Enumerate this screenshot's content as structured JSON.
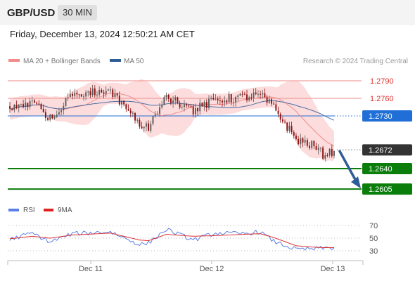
{
  "header": {
    "pair": "GBP/USD",
    "timeframe": "30 MIN"
  },
  "timestamp": "Friday, December 13, 2024 12:50:21 AM CET",
  "legend": {
    "ma20_label": "MA 20 + Bollinger Bands",
    "ma50_label": "MA 50",
    "credit": "Research © 2024 Trading Central",
    "rsi_label": "RSI",
    "rsi_ma_label": "9MA"
  },
  "colors": {
    "ma20": "#f08c8c",
    "band_fill": "#fcdcdc",
    "ma50": "#4a6fa5",
    "resistance": "#f2a0a0",
    "pivot": "#1f6fd6",
    "support": "#0a7d0a",
    "arrow": "#2e5c96",
    "candle_up": "#5a5a5a",
    "candle_down": "#8b1010",
    "rsi": "#5a80e6",
    "rsi_ma": "#e03030"
  },
  "chart_data": [
    {
      "type": "candlestick",
      "y_range": [
        1.2592,
        1.2808
      ],
      "x_ticks": [
        "Dec 11",
        "Dec 12",
        "Dec 13"
      ],
      "levels": [
        {
          "label": "1.2790",
          "value": 1.279,
          "kind": "resistance"
        },
        {
          "label": "1.2760",
          "value": 1.276,
          "kind": "resistance"
        },
        {
          "label": "1.2730",
          "value": 1.273,
          "kind": "pivot"
        },
        {
          "label": "1.2672",
          "value": 1.2672,
          "kind": "last"
        },
        {
          "label": "1.2640",
          "value": 1.264,
          "kind": "support"
        },
        {
          "label": "1.2605",
          "value": 1.2605,
          "kind": "support"
        }
      ],
      "key_points": [
        {
          "x": 0,
          "close": 1.2745
        },
        {
          "x": 10,
          "close": 1.2755
        },
        {
          "x": 18,
          "close": 1.2725
        },
        {
          "x": 28,
          "close": 1.2768
        },
        {
          "x": 45,
          "close": 1.277
        },
        {
          "x": 58,
          "close": 1.2715
        },
        {
          "x": 62,
          "close": 1.2712
        },
        {
          "x": 70,
          "close": 1.2762
        },
        {
          "x": 82,
          "close": 1.274
        },
        {
          "x": 92,
          "close": 1.2757
        },
        {
          "x": 104,
          "close": 1.2762
        },
        {
          "x": 112,
          "close": 1.2765
        },
        {
          "x": 118,
          "close": 1.2744
        },
        {
          "x": 128,
          "close": 1.269
        },
        {
          "x": 135,
          "close": 1.268
        },
        {
          "x": 140,
          "close": 1.2665
        },
        {
          "x": 145,
          "close": 1.267
        }
      ],
      "projection": {
        "from": 1.2672,
        "to": 1.2605
      }
    },
    {
      "type": "line",
      "title": "RSI",
      "y_range": [
        20,
        80
      ],
      "y_ticks": [
        30,
        50,
        70
      ],
      "series": [
        {
          "name": "RSI",
          "key_values": [
            [
              0,
              48
            ],
            [
              10,
              58
            ],
            [
              18,
              44
            ],
            [
              28,
              57
            ],
            [
              45,
              60
            ],
            [
              58,
              40
            ],
            [
              62,
              42
            ],
            [
              70,
              64
            ],
            [
              82,
              47
            ],
            [
              92,
              58
            ],
            [
              104,
              57
            ],
            [
              112,
              60
            ],
            [
              118,
              45
            ],
            [
              128,
              32
            ],
            [
              135,
              33
            ],
            [
              140,
              34
            ],
            [
              145,
              35
            ]
          ]
        },
        {
          "name": "9MA",
          "key_values": [
            [
              0,
              49
            ],
            [
              10,
              53
            ],
            [
              18,
              50
            ],
            [
              28,
              55
            ],
            [
              45,
              58
            ],
            [
              58,
              47
            ],
            [
              62,
              46
            ],
            [
              70,
              56
            ],
            [
              82,
              53
            ],
            [
              92,
              54
            ],
            [
              104,
              56
            ],
            [
              112,
              57
            ],
            [
              118,
              51
            ],
            [
              128,
              38
            ],
            [
              135,
              36
            ],
            [
              140,
              35
            ],
            [
              145,
              35
            ]
          ]
        }
      ]
    }
  ]
}
